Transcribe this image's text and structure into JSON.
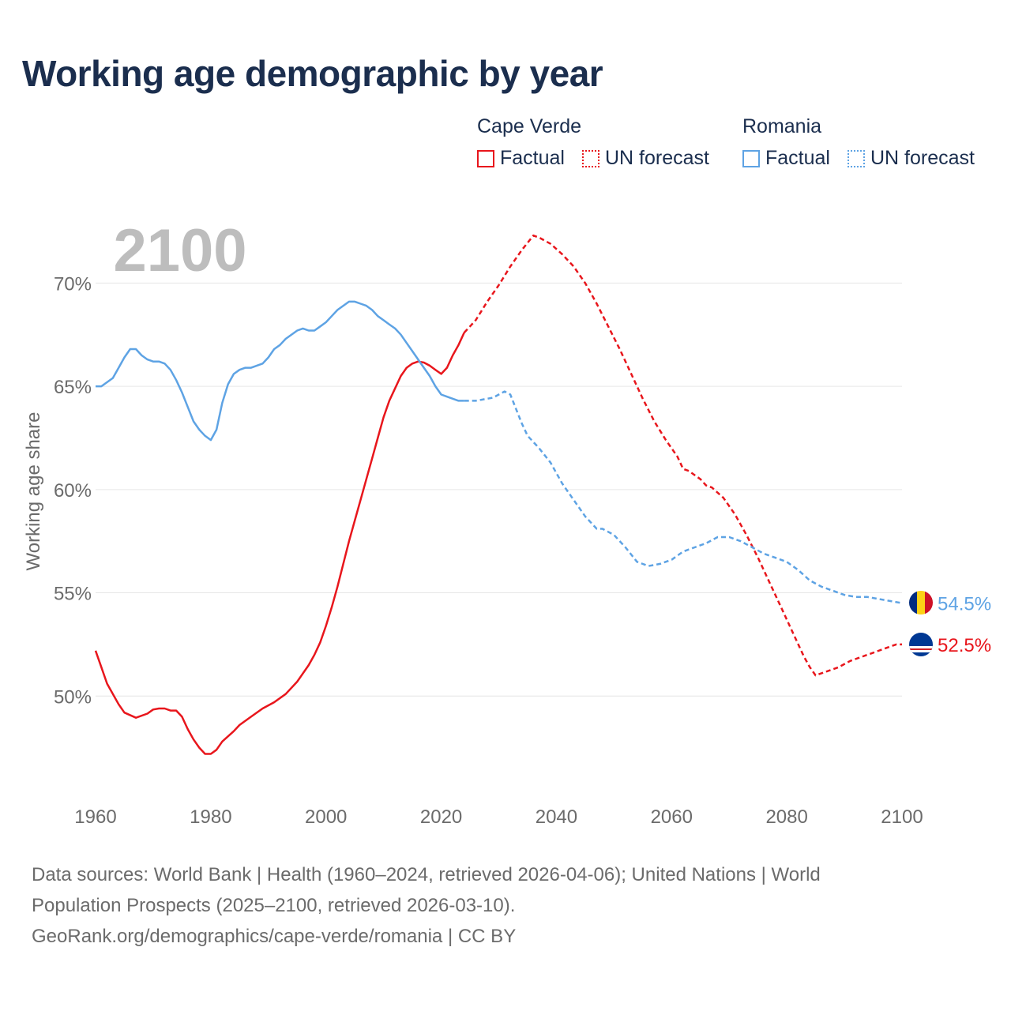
{
  "page": {
    "title": "Working age demographic by year",
    "year_label": "2100",
    "footer_line1": "Data sources: World Bank | Health (1960–2024, retrieved 2026-04-06); United Nations | World",
    "footer_line2": "Population Prospects (2025–2100, retrieved 2026-03-10).",
    "footer_line3": "GeoRank.org/demographics/cape-verde/romania | CC BY"
  },
  "legend": {
    "groups": [
      {
        "title": "Cape Verde",
        "factual": "Factual",
        "forecast": "UN forecast",
        "color": "#e8161c"
      },
      {
        "title": "Romania",
        "factual": "Factual",
        "forecast": "UN forecast",
        "color": "#5ea3e4"
      }
    ]
  },
  "chart_data": {
    "type": "line",
    "title": "Working age demographic by year",
    "ylabel": "Working age share",
    "xlabel": "",
    "xlim": [
      1960,
      2100
    ],
    "ylim": [
      45.0,
      72.5
    ],
    "x_ticks": [
      1960,
      1980,
      2000,
      2020,
      2040,
      2060,
      2080,
      2100
    ],
    "y_ticks": [
      50,
      55,
      60,
      65,
      70
    ],
    "y_tick_labels": [
      "50%",
      "55%",
      "60%",
      "65%",
      "70%"
    ],
    "grid": true,
    "factual_end_year": 2024,
    "series": [
      {
        "name": "Cape Verde",
        "color": "#e8161c",
        "end_label": "52.5%",
        "flag": "cape-verde",
        "points": [
          [
            1960,
            52.2
          ],
          [
            1962,
            50.6
          ],
          [
            1964,
            49.6
          ],
          [
            1965,
            49.2
          ],
          [
            1967,
            48.95
          ],
          [
            1969,
            49.15
          ],
          [
            1970,
            49.35
          ],
          [
            1971,
            49.4
          ],
          [
            1972,
            49.4
          ],
          [
            1973,
            49.3
          ],
          [
            1974,
            49.3
          ],
          [
            1975,
            49.0
          ],
          [
            1976,
            48.4
          ],
          [
            1977,
            47.9
          ],
          [
            1978,
            47.5
          ],
          [
            1979,
            47.2
          ],
          [
            1980,
            47.2
          ],
          [
            1981,
            47.4
          ],
          [
            1982,
            47.8
          ],
          [
            1984,
            48.3
          ],
          [
            1985,
            48.6
          ],
          [
            1987,
            49.0
          ],
          [
            1989,
            49.4
          ],
          [
            1991,
            49.7
          ],
          [
            1993,
            50.1
          ],
          [
            1995,
            50.7
          ],
          [
            1997,
            51.5
          ],
          [
            1998,
            52.0
          ],
          [
            1999,
            52.6
          ],
          [
            2000,
            53.4
          ],
          [
            2001,
            54.3
          ],
          [
            2002,
            55.3
          ],
          [
            2003,
            56.4
          ],
          [
            2004,
            57.5
          ],
          [
            2005,
            58.5
          ],
          [
            2006,
            59.5
          ],
          [
            2007,
            60.5
          ],
          [
            2008,
            61.5
          ],
          [
            2009,
            62.5
          ],
          [
            2010,
            63.5
          ],
          [
            2011,
            64.3
          ],
          [
            2012,
            64.9
          ],
          [
            2013,
            65.5
          ],
          [
            2014,
            65.9
          ],
          [
            2015,
            66.1
          ],
          [
            2016,
            66.2
          ],
          [
            2017,
            66.15
          ],
          [
            2018,
            66.0
          ],
          [
            2019,
            65.8
          ],
          [
            2020,
            65.6
          ],
          [
            2021,
            65.9
          ],
          [
            2022,
            66.5
          ],
          [
            2023,
            67.0
          ],
          [
            2024,
            67.6
          ],
          [
            2025,
            67.9
          ],
          [
            2026,
            68.2
          ],
          [
            2028,
            69.1
          ],
          [
            2030,
            69.9
          ],
          [
            2032,
            70.8
          ],
          [
            2034,
            71.6
          ],
          [
            2036,
            72.3
          ],
          [
            2037,
            72.2
          ],
          [
            2039,
            71.9
          ],
          [
            2041,
            71.4
          ],
          [
            2043,
            70.8
          ],
          [
            2045,
            70.0
          ],
          [
            2047,
            69.0
          ],
          [
            2049,
            67.9
          ],
          [
            2051,
            66.8
          ],
          [
            2053,
            65.6
          ],
          [
            2055,
            64.4
          ],
          [
            2057,
            63.3
          ],
          [
            2059,
            62.4
          ],
          [
            2061,
            61.6
          ],
          [
            2062,
            61.0
          ],
          [
            2063,
            60.9
          ],
          [
            2065,
            60.5
          ],
          [
            2066,
            60.2
          ],
          [
            2067,
            60.1
          ],
          [
            2069,
            59.6
          ],
          [
            2071,
            58.8
          ],
          [
            2073,
            57.8
          ],
          [
            2075,
            56.7
          ],
          [
            2077,
            55.5
          ],
          [
            2079,
            54.3
          ],
          [
            2081,
            53.1
          ],
          [
            2083,
            51.9
          ],
          [
            2084,
            51.4
          ],
          [
            2085,
            51.0
          ],
          [
            2087,
            51.2
          ],
          [
            2089,
            51.4
          ],
          [
            2091,
            51.7
          ],
          [
            2093,
            51.9
          ],
          [
            2095,
            52.1
          ],
          [
            2097,
            52.3
          ],
          [
            2099,
            52.5
          ],
          [
            2100,
            52.5
          ]
        ]
      },
      {
        "name": "Romania",
        "color": "#5ea3e4",
        "end_label": "54.5%",
        "flag": "romania",
        "points": [
          [
            1960,
            65.0
          ],
          [
            1961,
            65.0
          ],
          [
            1963,
            65.4
          ],
          [
            1964,
            65.9
          ],
          [
            1965,
            66.4
          ],
          [
            1966,
            66.8
          ],
          [
            1967,
            66.8
          ],
          [
            1968,
            66.5
          ],
          [
            1969,
            66.3
          ],
          [
            1970,
            66.2
          ],
          [
            1971,
            66.2
          ],
          [
            1972,
            66.1
          ],
          [
            1973,
            65.8
          ],
          [
            1974,
            65.3
          ],
          [
            1975,
            64.7
          ],
          [
            1976,
            64.0
          ],
          [
            1977,
            63.3
          ],
          [
            1978,
            62.9
          ],
          [
            1979,
            62.6
          ],
          [
            1980,
            62.4
          ],
          [
            1981,
            62.9
          ],
          [
            1982,
            64.2
          ],
          [
            1983,
            65.1
          ],
          [
            1984,
            65.6
          ],
          [
            1985,
            65.8
          ],
          [
            1986,
            65.9
          ],
          [
            1987,
            65.9
          ],
          [
            1988,
            66.0
          ],
          [
            1989,
            66.1
          ],
          [
            1990,
            66.4
          ],
          [
            1991,
            66.8
          ],
          [
            1992,
            67.0
          ],
          [
            1993,
            67.3
          ],
          [
            1994,
            67.5
          ],
          [
            1995,
            67.7
          ],
          [
            1996,
            67.8
          ],
          [
            1997,
            67.7
          ],
          [
            1998,
            67.7
          ],
          [
            1999,
            67.9
          ],
          [
            2000,
            68.1
          ],
          [
            2001,
            68.4
          ],
          [
            2002,
            68.7
          ],
          [
            2003,
            68.9
          ],
          [
            2004,
            69.1
          ],
          [
            2005,
            69.1
          ],
          [
            2006,
            69.0
          ],
          [
            2007,
            68.9
          ],
          [
            2008,
            68.7
          ],
          [
            2009,
            68.4
          ],
          [
            2010,
            68.2
          ],
          [
            2011,
            68.0
          ],
          [
            2012,
            67.8
          ],
          [
            2013,
            67.5
          ],
          [
            2014,
            67.1
          ],
          [
            2015,
            66.7
          ],
          [
            2016,
            66.3
          ],
          [
            2017,
            65.9
          ],
          [
            2018,
            65.5
          ],
          [
            2019,
            65.0
          ],
          [
            2020,
            64.6
          ],
          [
            2021,
            64.5
          ],
          [
            2022,
            64.4
          ],
          [
            2023,
            64.3
          ],
          [
            2024,
            64.3
          ],
          [
            2025,
            64.3
          ],
          [
            2026,
            64.3
          ],
          [
            2027,
            64.35
          ],
          [
            2028,
            64.4
          ],
          [
            2029,
            64.45
          ],
          [
            2030,
            64.6
          ],
          [
            2031,
            64.75
          ],
          [
            2032,
            64.6
          ],
          [
            2033,
            63.9
          ],
          [
            2034,
            63.2
          ],
          [
            2035,
            62.6
          ],
          [
            2037,
            62.0
          ],
          [
            2039,
            61.3
          ],
          [
            2041,
            60.3
          ],
          [
            2043,
            59.5
          ],
          [
            2045,
            58.7
          ],
          [
            2047,
            58.1
          ],
          [
            2048,
            58.1
          ],
          [
            2050,
            57.8
          ],
          [
            2052,
            57.2
          ],
          [
            2054,
            56.5
          ],
          [
            2056,
            56.3
          ],
          [
            2058,
            56.4
          ],
          [
            2060,
            56.6
          ],
          [
            2062,
            57.0
          ],
          [
            2064,
            57.2
          ],
          [
            2066,
            57.4
          ],
          [
            2068,
            57.7
          ],
          [
            2070,
            57.7
          ],
          [
            2072,
            57.5
          ],
          [
            2074,
            57.2
          ],
          [
            2076,
            56.9
          ],
          [
            2078,
            56.7
          ],
          [
            2080,
            56.5
          ],
          [
            2082,
            56.1
          ],
          [
            2084,
            55.6
          ],
          [
            2086,
            55.3
          ],
          [
            2088,
            55.1
          ],
          [
            2090,
            54.9
          ],
          [
            2092,
            54.8
          ],
          [
            2094,
            54.8
          ],
          [
            2096,
            54.7
          ],
          [
            2098,
            54.6
          ],
          [
            2100,
            54.5
          ]
        ]
      }
    ]
  }
}
